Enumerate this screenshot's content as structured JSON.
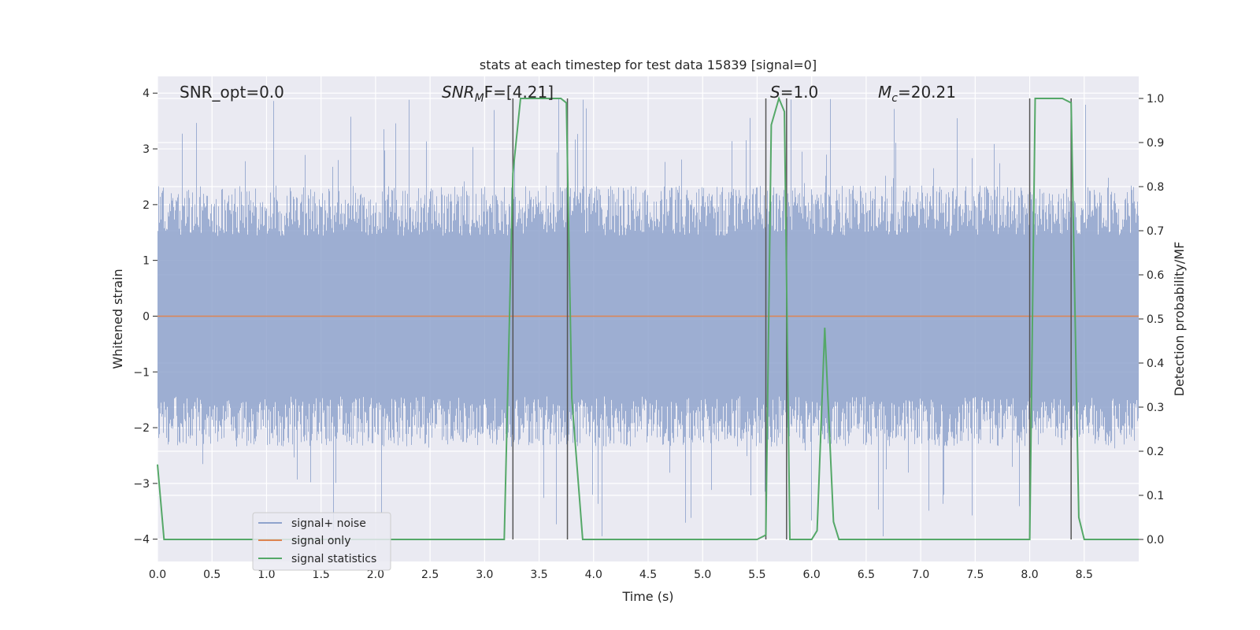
{
  "chart_data": {
    "type": "line",
    "title": "stats at each timestep for test data 15839 [signal=0]",
    "xlabel": "Time (s)",
    "ylabel": "Whitened strain",
    "y2label": "Detection probability/MF",
    "xlim": [
      0,
      9
    ],
    "ylim": [
      -4.4,
      4.3
    ],
    "y2lim": [
      -0.05,
      1.05
    ],
    "x_ticks": [
      "0.0",
      "0.5",
      "1.0",
      "1.5",
      "2.0",
      "2.5",
      "3.0",
      "3.5",
      "4.0",
      "4.5",
      "5.0",
      "5.5",
      "6.0",
      "6.5",
      "7.0",
      "7.5",
      "8.0",
      "8.5"
    ],
    "y_ticks": [
      "4",
      "3",
      "2",
      "1",
      "0",
      "−1",
      "−2",
      "−3",
      "−4"
    ],
    "y2_ticks": [
      "1.0",
      "0.9",
      "0.8",
      "0.7",
      "0.6",
      "0.5",
      "0.4",
      "0.3",
      "0.2",
      "0.1",
      "0.0"
    ],
    "grid": true,
    "legend_position": "lower-left",
    "annotations": {
      "snr_opt": "SNR_opt=0.0",
      "snr_mf_main": "SNR",
      "snr_mf_sub": "M",
      "snr_mf_rest": "F=[4.21]",
      "s_italic": "S",
      "s_rest": "=1.0",
      "mc_italic": "M",
      "mc_sub": "c",
      "mc_rest": "=20.21"
    },
    "series": [
      {
        "name": "signal+ noise",
        "color": "#8fa3cc",
        "kind": "noise-band",
        "envelope_upper": 2.0,
        "envelope_lower": -2.0,
        "peak_max": 3.9,
        "peak_min": -4.0
      },
      {
        "name": "signal only",
        "color": "#dd8452",
        "x": [
          0,
          9
        ],
        "y": [
          0,
          0
        ]
      },
      {
        "name": "signal statistics",
        "color": "#55a868",
        "axis": "right",
        "x": [
          0.0,
          0.06,
          0.1,
          0.2,
          0.3,
          0.4,
          0.5,
          1.0,
          1.5,
          2.0,
          2.5,
          3.0,
          3.18,
          3.26,
          3.33,
          3.4,
          3.5,
          3.6,
          3.7,
          3.75,
          3.8,
          3.9,
          4.0,
          4.5,
          5.0,
          5.5,
          5.58,
          5.63,
          5.7,
          5.75,
          5.8,
          5.85,
          5.9,
          6.0,
          6.05,
          6.12,
          6.2,
          6.25,
          6.3,
          6.5,
          7.0,
          7.5,
          8.0,
          8.05,
          8.1,
          8.2,
          8.3,
          8.38,
          8.45,
          8.5,
          9.0
        ],
        "y": [
          0.17,
          0.0,
          0.0,
          0.0,
          0.0,
          0.0,
          0.0,
          0.0,
          0.0,
          0.0,
          0.0,
          0.0,
          0.0,
          0.83,
          1.0,
          1.0,
          1.0,
          1.0,
          1.0,
          0.99,
          0.32,
          0.0,
          0.0,
          0.0,
          0.0,
          0.0,
          0.01,
          0.94,
          1.0,
          0.97,
          0.0,
          0.0,
          0.0,
          0.0,
          0.02,
          0.48,
          0.04,
          0.0,
          0.0,
          0.0,
          0.0,
          0.0,
          0.0,
          1.0,
          1.0,
          1.0,
          1.0,
          0.99,
          0.05,
          0.0,
          0.0
        ]
      }
    ],
    "vertical_markers": [
      3.26,
      3.76,
      5.58,
      5.77,
      8.0,
      8.38
    ]
  },
  "legend": {
    "items": [
      {
        "label": "signal+ noise",
        "color": "#8fa3cc"
      },
      {
        "label": "signal only",
        "color": "#dd8452"
      },
      {
        "label": "signal statistics",
        "color": "#55a868"
      }
    ]
  }
}
